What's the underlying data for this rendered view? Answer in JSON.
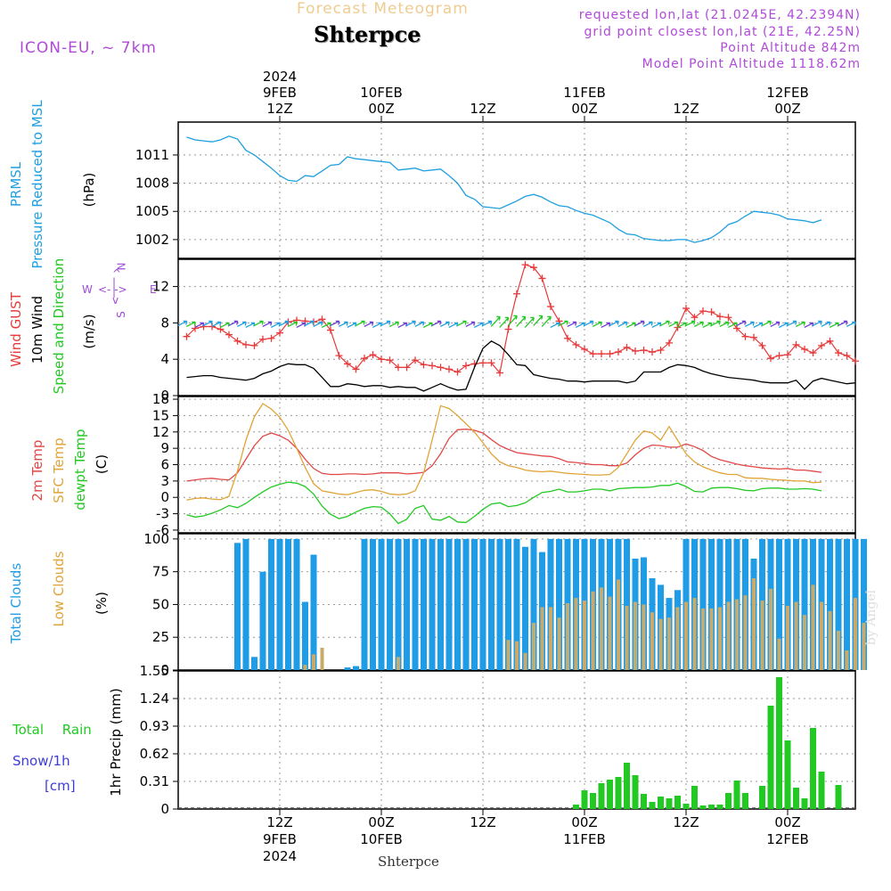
{
  "header": {
    "product": "Forecast Meteogram",
    "station": "Shterpce",
    "model": "ICON-EU, ~ 7km",
    "requested": "requested lon,lat (21.0245E, 42.2394N)",
    "gridpoint": "grid point closest lon,lat (21E, 42.25N)",
    "point_alt": "Point Altitude 842m",
    "model_alt": "Model Point Altitude 1118.62m",
    "footer_station": "Shterpce",
    "credit": "by Angel"
  },
  "time_axis": {
    "top_labels": [
      {
        "h": 12,
        "lines": [
          "2024",
          "9FEB",
          "12Z"
        ]
      },
      {
        "h": 24,
        "lines": [
          "10FEB",
          "00Z"
        ]
      },
      {
        "h": 36,
        "lines": [
          "12Z"
        ]
      },
      {
        "h": 48,
        "lines": [
          "11FEB",
          "00Z"
        ]
      },
      {
        "h": 60,
        "lines": [
          "12Z"
        ]
      },
      {
        "h": 72,
        "lines": [
          "12FEB",
          "00Z"
        ]
      }
    ],
    "bottom_labels": [
      {
        "h": 12,
        "lines": [
          "12Z",
          "9FEB",
          "2024"
        ]
      },
      {
        "h": 24,
        "lines": [
          "00Z",
          "10FEB"
        ]
      },
      {
        "h": 36,
        "lines": [
          "12Z"
        ]
      },
      {
        "h": 48,
        "lines": [
          "00Z",
          "11FEB"
        ]
      },
      {
        "h": 60,
        "lines": [
          "12Z"
        ]
      },
      {
        "h": 72,
        "lines": [
          "00Z",
          "12FEB"
        ]
      }
    ]
  },
  "labels": {
    "pressure": [
      "PRMSL",
      "Pressure Reduced to MSL",
      "(hPa)"
    ],
    "wind": [
      "Wind GUST",
      "10m Wind",
      "Speed and Direction",
      "(m/s)"
    ],
    "compass": {
      "n": "N",
      "s": "S",
      "w": "W",
      "e": "E"
    },
    "temp": [
      "2m Temp",
      "SFC Temp",
      "dewpt Temp",
      "(C)"
    ],
    "clouds": [
      "Total Clouds",
      "Low Clouds",
      "(%)"
    ],
    "precip": [
      "Total Rain",
      "Snow/1h",
      "[cm]",
      "1hr Precip (mm)"
    ]
  },
  "chart_data": [
    {
      "type": "line",
      "title": "PRMSL Pressure Reduced to MSL",
      "ylabel": "(hPa)",
      "ylim": [
        1000,
        1014.5
      ],
      "yticks": [
        1002,
        1005,
        1008,
        1011
      ],
      "x_hours_start": 1,
      "x_step_hours": 1,
      "series": [
        {
          "name": "PRMSL",
          "color": "#1e9fe0",
          "values": [
            1012.9,
            1012.6,
            1012.5,
            1012.4,
            1012.6,
            1013.0,
            1012.7,
            1011.5,
            1011.0,
            1010.3,
            1009.6,
            1008.8,
            1008.3,
            1008.2,
            1008.8,
            1008.7,
            1009.3,
            1009.9,
            1010.0,
            1010.8,
            1010.6,
            1010.5,
            1010.4,
            1010.3,
            1010.2,
            1009.4,
            1009.5,
            1009.6,
            1009.3,
            1009.4,
            1009.5,
            1008.8,
            1008.0,
            1006.7,
            1006.3,
            1005.5,
            1005.4,
            1005.3,
            1005.7,
            1006.1,
            1006.6,
            1006.8,
            1006.5,
            1006.0,
            1005.6,
            1005.5,
            1005.1,
            1004.8,
            1004.6,
            1004.2,
            1003.8,
            1003.1,
            1002.6,
            1002.5,
            1002.1,
            1002.0,
            1001.9,
            1001.9,
            1002.0,
            1002.0,
            1001.7,
            1001.9,
            1002.2,
            1002.8,
            1003.6,
            1003.9,
            1004.5,
            1005.0,
            1004.9,
            1004.8,
            1004.6,
            1004.2,
            1004.1,
            1004.0,
            1003.8,
            1004.1
          ]
        }
      ]
    },
    {
      "type": "line",
      "title": "Wind GUST / 10m Wind Speed and Direction",
      "ylabel": "(m/s)",
      "ylim": [
        0,
        15
      ],
      "yticks": [
        0,
        4,
        8,
        12
      ],
      "x_hours_start": 1,
      "x_step_hours": 1,
      "series": [
        {
          "name": "Wind GUST",
          "color": "#e83a3a",
          "marker": "+",
          "values": [
            6.5,
            7.4,
            7.6,
            7.6,
            7.3,
            6.7,
            6.0,
            5.6,
            5.5,
            6.2,
            6.3,
            6.9,
            8.1,
            8.3,
            8.2,
            8.1,
            8.4,
            7.2,
            4.4,
            3.5,
            2.9,
            4.1,
            4.5,
            4.0,
            3.9,
            3.1,
            3.1,
            3.9,
            3.4,
            3.3,
            3.1,
            2.9,
            2.6,
            3.3,
            3.5,
            3.6,
            3.6,
            2.5,
            7.3,
            11.2,
            14.4,
            14.1,
            12.9,
            9.8,
            8.2,
            6.3,
            5.6,
            5.1,
            4.6,
            4.6,
            4.6,
            4.8,
            5.3,
            4.9,
            5.0,
            4.8,
            5.0,
            5.8,
            7.5,
            9.6,
            8.6,
            9.3,
            9.2,
            8.7,
            8.6,
            7.4,
            6.5,
            6.4,
            5.5,
            4.1,
            4.4,
            4.5,
            5.6,
            5.1,
            4.7,
            5.5,
            6.0,
            4.7,
            4.4,
            3.8
          ]
        },
        {
          "name": "10m Wind",
          "color": "#000000",
          "values": [
            2.0,
            2.1,
            2.2,
            2.2,
            2.0,
            1.9,
            1.8,
            1.7,
            1.9,
            2.4,
            2.7,
            3.2,
            3.5,
            3.4,
            3.4,
            3.0,
            2.0,
            1.0,
            1.0,
            1.3,
            1.2,
            1.0,
            1.1,
            1.1,
            0.9,
            1.0,
            0.9,
            0.9,
            0.5,
            0.9,
            1.3,
            0.9,
            0.6,
            0.7,
            3.1,
            5.2,
            6.0,
            5.5,
            4.5,
            3.4,
            3.3,
            2.3,
            2.1,
            1.9,
            1.8,
            1.6,
            1.6,
            1.5,
            1.6,
            1.6,
            1.6,
            1.6,
            1.4,
            1.6,
            2.6,
            2.6,
            2.6,
            3.1,
            3.4,
            3.3,
            3.1,
            2.7,
            2.4,
            2.2,
            2.0,
            1.9,
            1.8,
            1.7,
            1.5,
            1.4,
            1.4,
            1.4,
            1.7,
            0.7,
            1.6,
            1.9,
            1.7,
            1.5,
            1.3,
            1.4
          ]
        }
      ]
    },
    {
      "type": "line",
      "title": "2m Temp / SFC Temp / dewpt Temp",
      "ylabel": "(C)",
      "ylim": [
        -6.5,
        18.5
      ],
      "yticks": [
        -6,
        -3,
        0,
        3,
        6,
        9,
        12,
        15,
        18
      ],
      "x_hours_start": 1,
      "x_step_hours": 1,
      "series": [
        {
          "name": "2m Temp",
          "color": "#e04848",
          "values": [
            3.0,
            3.2,
            3.4,
            3.5,
            3.3,
            3.2,
            4.5,
            7.0,
            9.5,
            11.2,
            11.8,
            11.3,
            10.5,
            9.0,
            7.0,
            5.3,
            4.4,
            4.2,
            4.2,
            4.3,
            4.3,
            4.2,
            4.3,
            4.5,
            4.5,
            4.5,
            4.3,
            4.4,
            4.6,
            5.8,
            8.0,
            10.8,
            12.4,
            12.5,
            12.3,
            11.8,
            10.6,
            9.5,
            8.8,
            8.2,
            8.0,
            7.8,
            7.6,
            7.5,
            7.1,
            6.5,
            6.4,
            6.2,
            6.0,
            6.0,
            5.8,
            5.8,
            6.3,
            7.8,
            9.0,
            9.6,
            9.5,
            9.2,
            9.2,
            9.8,
            9.3,
            8.6,
            7.5,
            6.9,
            6.5,
            6.1,
            5.8,
            5.6,
            5.4,
            5.3,
            5.2,
            5.3,
            5.0,
            5.0,
            4.8,
            4.6
          ]
        },
        {
          "name": "SFC Temp",
          "color": "#e0a438",
          "values": [
            -0.5,
            -0.2,
            -0.1,
            -0.3,
            -0.4,
            0.2,
            4.8,
            10.5,
            14.8,
            17.2,
            16.2,
            14.7,
            12.3,
            9.0,
            5.5,
            2.5,
            1.2,
            0.9,
            0.6,
            0.5,
            0.9,
            1.3,
            1.4,
            1.1,
            0.6,
            0.5,
            0.6,
            1.2,
            4.5,
            10.5,
            16.8,
            16.3,
            15.0,
            13.5,
            12.0,
            10.0,
            8.0,
            6.5,
            5.8,
            5.5,
            5.0,
            4.8,
            4.7,
            4.8,
            4.6,
            4.4,
            4.3,
            4.2,
            4.1,
            4.1,
            4.2,
            5.5,
            8.0,
            10.5,
            12.2,
            11.8,
            10.5,
            13.0,
            10.5,
            8.0,
            6.5,
            5.6,
            5.0,
            4.5,
            4.2,
            4.2,
            3.6,
            3.5,
            3.5,
            3.3,
            3.2,
            3.1,
            3.0,
            3.0,
            2.7,
            2.8
          ]
        },
        {
          "name": "dewpt Temp",
          "color": "#22c922",
          "values": [
            -3.2,
            -3.6,
            -3.4,
            -2.9,
            -2.3,
            -1.5,
            -1.9,
            -1.1,
            0.0,
            1.0,
            1.9,
            2.4,
            2.8,
            2.6,
            2.0,
            0.6,
            -1.6,
            -3.1,
            -3.9,
            -3.5,
            -2.7,
            -2.0,
            -1.7,
            -1.8,
            -3.0,
            -4.8,
            -4.0,
            -2.0,
            -1.5,
            -4.0,
            -4.2,
            -3.5,
            -4.5,
            -4.6,
            -3.5,
            -2.2,
            -1.2,
            -1.0,
            -1.7,
            -1.5,
            -1.0,
            0.0,
            0.9,
            1.1,
            1.5,
            1.0,
            1.0,
            1.2,
            1.5,
            1.5,
            1.2,
            1.6,
            1.7,
            1.8,
            1.8,
            1.9,
            2.2,
            2.2,
            2.6,
            2.0,
            1.1,
            1.0,
            1.7,
            1.8,
            1.8,
            1.6,
            1.3,
            1.2,
            1.6,
            1.7,
            1.7,
            1.5,
            1.5,
            1.6,
            1.5,
            1.2
          ]
        }
      ]
    },
    {
      "type": "bar",
      "title": "Total Clouds / Low Clouds",
      "ylabel": "(%)",
      "ylim": [
        0,
        104
      ],
      "yticks": [
        0,
        25,
        50,
        75,
        100
      ],
      "x_hours_start": 1,
      "x_step_hours": 1,
      "series": [
        {
          "name": "Total Clouds",
          "color": "#1e9ce6",
          "values": [
            0,
            0,
            0,
            0,
            0,
            0,
            97,
            100,
            10,
            75,
            100,
            100,
            100,
            100,
            52,
            88,
            0,
            0,
            0,
            2,
            3,
            100,
            100,
            100,
            100,
            100,
            100,
            100,
            100,
            100,
            100,
            100,
            100,
            100,
            100,
            100,
            100,
            100,
            100,
            100,
            94,
            100,
            90,
            100,
            100,
            100,
            100,
            100,
            100,
            100,
            100,
            100,
            100,
            85,
            86,
            70,
            65,
            55,
            61,
            100,
            100,
            100,
            100,
            100,
            100,
            100,
            100,
            85,
            100,
            100,
            100,
            100,
            100,
            100,
            100,
            100,
            100,
            100,
            100,
            100,
            100
          ]
        },
        {
          "name": "Low Clouds",
          "color": "#c9aa6a",
          "values": [
            0,
            0,
            0,
            0,
            0,
            0,
            0,
            0,
            0,
            0,
            0,
            0,
            0,
            0,
            4,
            12,
            17,
            0,
            0,
            0,
            0,
            0,
            0,
            0,
            0,
            10,
            0,
            0,
            0,
            0,
            0,
            0,
            0,
            0,
            0,
            0,
            0,
            0,
            23,
            22,
            13,
            36,
            48,
            48,
            40,
            51,
            55,
            53,
            60,
            63,
            56,
            69,
            49,
            52,
            50,
            44,
            39,
            40,
            48,
            52,
            55,
            47,
            47,
            48,
            52,
            54,
            57,
            70,
            53,
            62,
            24,
            49,
            52,
            42,
            65,
            52,
            45,
            30,
            15,
            55,
            36
          ]
        }
      ]
    },
    {
      "type": "bar",
      "title": "Total Rain / Snow/1h",
      "ylabel": "1hr Precip (mm)",
      "ylim": [
        0,
        1.55
      ],
      "yticks": [
        0,
        0.31,
        0.62,
        0.93,
        1.24,
        1.55
      ],
      "ytick_labels": [
        "0",
        "0.31",
        "0.62",
        "0.93",
        "1.24",
        "1.55"
      ],
      "x_hours_start": 47,
      "x_step_hours": 1,
      "series": [
        {
          "name": "Total Rain",
          "color": "#22c922",
          "values": [
            0.05,
            0.21,
            0.18,
            0.29,
            0.33,
            0.36,
            0.52,
            0.38,
            0.17,
            0.08,
            0.14,
            0.12,
            0.15,
            0.06,
            0.26,
            0.04,
            0.05,
            0.05,
            0.18,
            0.32,
            0.18,
            0.0,
            0.26,
            1.16,
            1.48,
            0.77,
            0.24,
            0.12,
            0.91,
            0.42,
            0.0,
            0.27
          ]
        },
        {
          "name": "Snow/1h",
          "color": "#3c3cd8",
          "values": []
        }
      ]
    }
  ]
}
